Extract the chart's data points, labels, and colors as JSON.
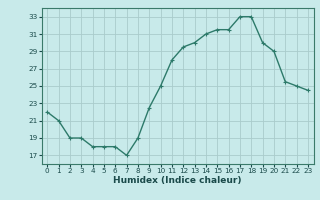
{
  "x": [
    0,
    1,
    2,
    3,
    4,
    5,
    6,
    7,
    8,
    9,
    10,
    11,
    12,
    13,
    14,
    15,
    16,
    17,
    18,
    19,
    20,
    21,
    22,
    23
  ],
  "y": [
    22,
    21,
    19,
    19,
    18,
    18,
    18,
    17,
    19,
    22.5,
    25,
    28,
    29.5,
    30,
    31,
    31.5,
    31.5,
    33,
    33,
    30,
    29,
    25.5,
    25,
    24.5
  ],
  "line_color": "#2d7a6a",
  "bg_color": "#c8eaea",
  "grid_color": "#aacccc",
  "xlabel": "Humidex (Indice chaleur)",
  "xlim": [
    -0.5,
    23.5
  ],
  "ylim": [
    16,
    34
  ],
  "yticks": [
    17,
    19,
    21,
    23,
    25,
    27,
    29,
    31,
    33
  ],
  "xticks": [
    0,
    1,
    2,
    3,
    4,
    5,
    6,
    7,
    8,
    9,
    10,
    11,
    12,
    13,
    14,
    15,
    16,
    17,
    18,
    19,
    20,
    21,
    22,
    23
  ],
  "marker_size": 2.5,
  "line_width": 1.0,
  "tick_fontsize": 5.2,
  "xlabel_fontsize": 6.5
}
